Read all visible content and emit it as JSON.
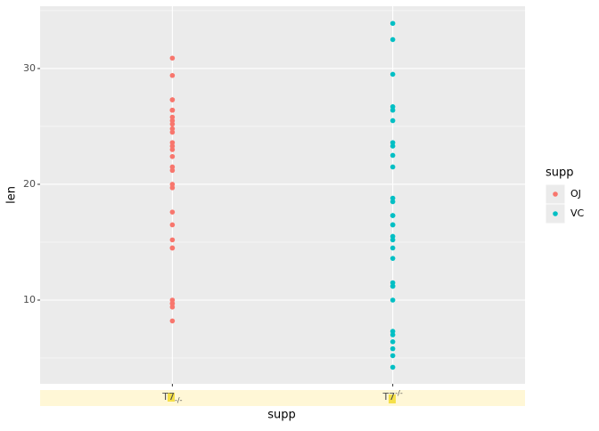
{
  "chart_data": {
    "type": "strip",
    "x_label": "supp",
    "y_label": "len",
    "categories": [
      {
        "text": "T7",
        "sub": "-/-"
      },
      {
        "text": "T7",
        "sup": "-/-"
      }
    ],
    "legend_title": "supp",
    "legend_position": "right",
    "series": [
      {
        "name": "OJ",
        "color": "#F8766D",
        "category": 0,
        "values": [
          15.2,
          21.5,
          17.6,
          9.7,
          14.5,
          10.0,
          8.2,
          9.4,
          16.5,
          9.7,
          19.7,
          23.3,
          23.6,
          26.4,
          20.0,
          25.2,
          25.8,
          21.2,
          14.5,
          27.3,
          25.5,
          26.4,
          22.4,
          24.5,
          24.8,
          30.9,
          26.4,
          27.3,
          29.4,
          23.0
        ]
      },
      {
        "name": "VC",
        "color": "#00BFC4",
        "category": 1,
        "values": [
          4.2,
          11.5,
          7.3,
          5.8,
          6.4,
          10.0,
          11.2,
          11.2,
          5.2,
          7.0,
          16.5,
          16.5,
          15.2,
          17.3,
          22.5,
          17.3,
          13.6,
          14.5,
          18.8,
          15.5,
          23.6,
          18.5,
          33.9,
          25.5,
          26.4,
          32.5,
          26.7,
          21.5,
          23.3,
          29.5
        ]
      }
    ],
    "ylim": [
      2.77,
      35.38
    ],
    "yticks": [
      10,
      20,
      30
    ],
    "y_minor_gridlines": [
      5,
      15,
      25,
      35
    ],
    "grid": true
  }
}
